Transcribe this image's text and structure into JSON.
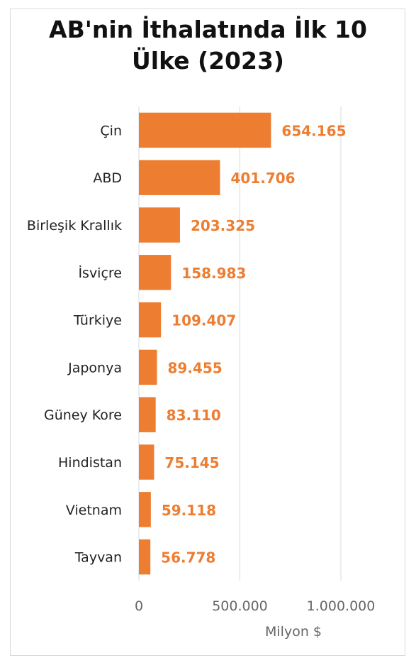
{
  "chart_data": {
    "type": "bar",
    "orientation": "horizontal",
    "title_line1": "AB'nin İthalatında İlk 10",
    "title_line2": "Ülke (2023)",
    "categories": [
      "Çin",
      "ABD",
      "Birleşik Krallık",
      "İsviçre",
      "Türkiye",
      "Japonya",
      "Güney Kore",
      "Hindistan",
      "Vietnam",
      "Tayvan"
    ],
    "values": [
      654165,
      401706,
      203325,
      158983,
      109407,
      89455,
      83110,
      75145,
      59118,
      56778
    ],
    "value_labels": [
      "654.165",
      "401.706",
      "203.325",
      "158.983",
      "109.407",
      "89.455",
      "83.110",
      "75.145",
      "59.118",
      "56.778"
    ],
    "xlabel": "Milyon $",
    "ylabel": "",
    "xlim": [
      0,
      1000000
    ],
    "ticks": [
      0,
      500000,
      1000000
    ],
    "tick_labels": [
      "0",
      "500.000",
      "1.000.000"
    ],
    "grid": true,
    "legend": "none",
    "colors": {
      "bar": "#ed7d31",
      "label": "#ed7d31",
      "grid": "#d9d9d9"
    }
  }
}
